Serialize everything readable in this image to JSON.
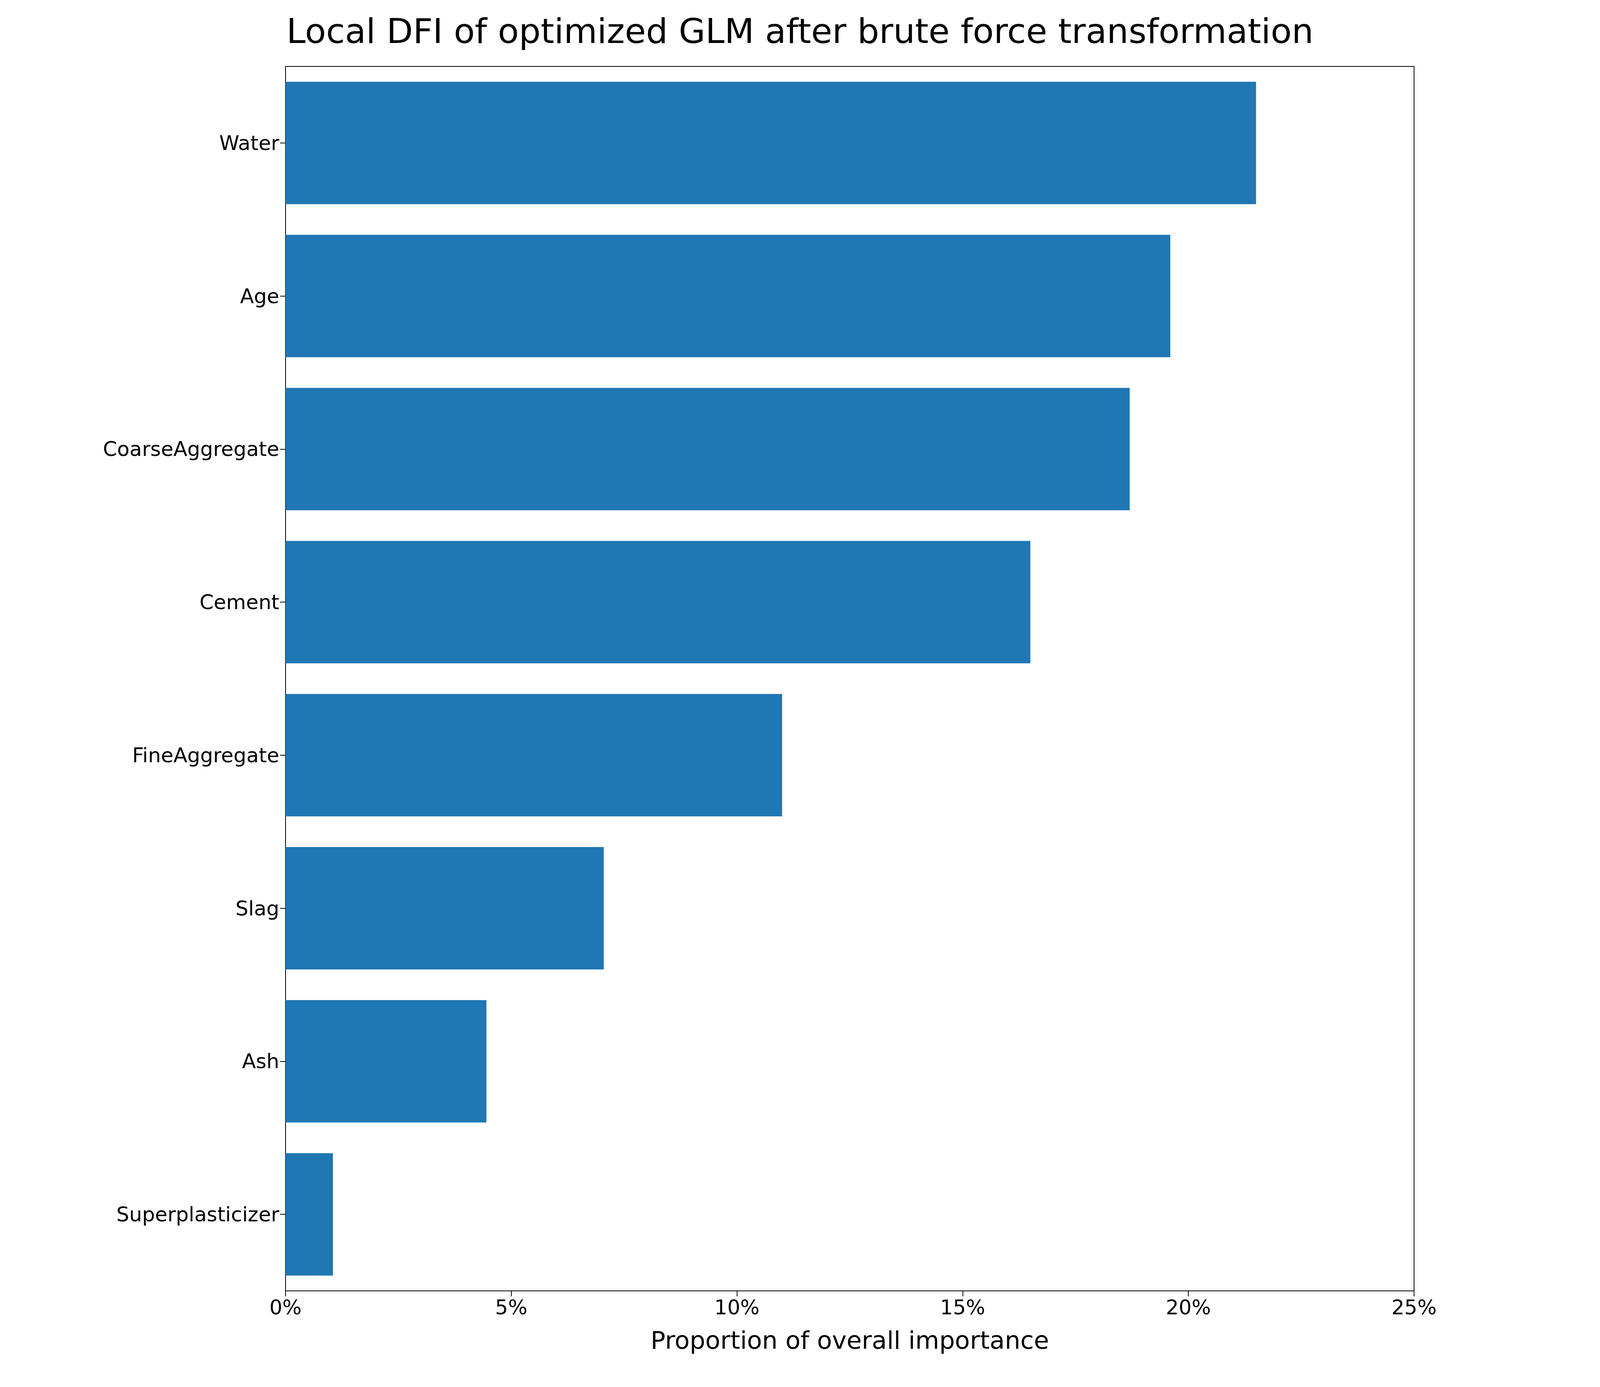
{
  "chart_data": {
    "type": "bar",
    "orientation": "horizontal",
    "title": "Local DFI of optimized GLM after brute force transformation",
    "xlabel": "Proportion of overall importance",
    "categories": [
      "Water",
      "Age",
      "CoarseAggregate",
      "Cement",
      "FineAggregate",
      "Slag",
      "Ash",
      "Superplasticizer"
    ],
    "values": [
      21.5,
      19.6,
      18.7,
      16.5,
      11.0,
      7.05,
      4.45,
      1.05
    ],
    "color": "#1f77b4",
    "xlim": [
      0,
      25
    ],
    "xticks": [
      {
        "value": 0,
        "label": "0%"
      },
      {
        "value": 5,
        "label": "5%"
      },
      {
        "value": 10,
        "label": "10%"
      },
      {
        "value": 15,
        "label": "15%"
      },
      {
        "value": 20,
        "label": "20%"
      },
      {
        "value": 25,
        "label": "25%"
      }
    ],
    "grid": false
  }
}
